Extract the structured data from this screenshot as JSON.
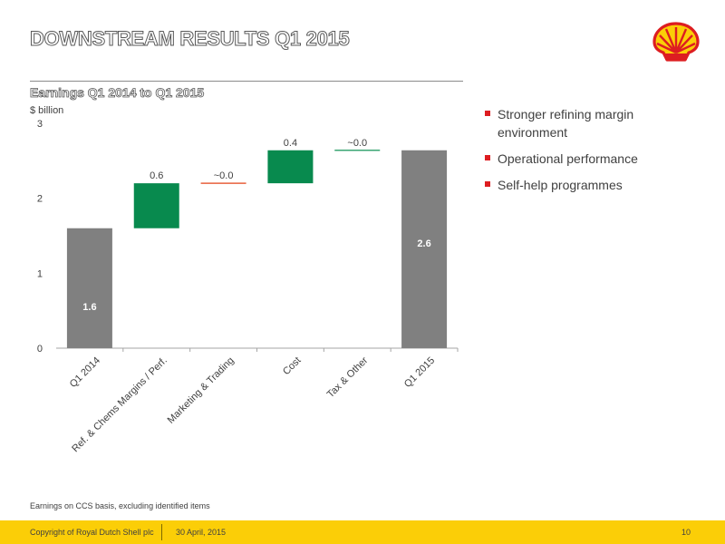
{
  "header": {
    "title": "DOWNSTREAM RESULTS Q1 2015",
    "subtitle": "Earnings Q1 2014 to Q1 2015",
    "unit_label": "$ billion"
  },
  "brand": {
    "logo_icon": "shell-pecten-logo",
    "red": "#dd1d21",
    "yellow": "#fbce07"
  },
  "bullets": [
    "Stronger refining margin environment",
    "Operational performance",
    "Self-help programmes"
  ],
  "footnote": "Earnings on CCS basis, excluding identified items",
  "footer": {
    "copyright": "Copyright of Royal Dutch Shell plc",
    "date": "30  April, 2015",
    "page": "10"
  },
  "chart_data": {
    "type": "bar",
    "subtype": "waterfall",
    "categories": [
      "Q1 2014",
      "Ref. & Chems Margins / Perf.",
      "Marketing & Trading",
      "Cost",
      "Tax & Other",
      "Q1 2015"
    ],
    "bars": [
      {
        "kind": "total",
        "start": 0,
        "end": 1.6,
        "label": "1.6",
        "color": "#808080"
      },
      {
        "kind": "delta",
        "start": 1.6,
        "end": 2.2,
        "label": "0.6",
        "color": "#088a4e"
      },
      {
        "kind": "delta",
        "start": 2.2,
        "end": 2.2,
        "label": "~0.0",
        "color": "#e8613c"
      },
      {
        "kind": "delta",
        "start": 2.2,
        "end": 2.64,
        "label": "0.4",
        "color": "#088a4e"
      },
      {
        "kind": "delta",
        "start": 2.64,
        "end": 2.64,
        "label": "~0.0",
        "color": "#3aa573"
      },
      {
        "kind": "total",
        "start": 0,
        "end": 2.64,
        "label": "2.6",
        "color": "#808080"
      }
    ],
    "ylim": [
      0,
      3
    ],
    "yticks": [
      "0",
      "1",
      "2",
      "3"
    ],
    "ylabel": "$ billion",
    "grid": false
  }
}
